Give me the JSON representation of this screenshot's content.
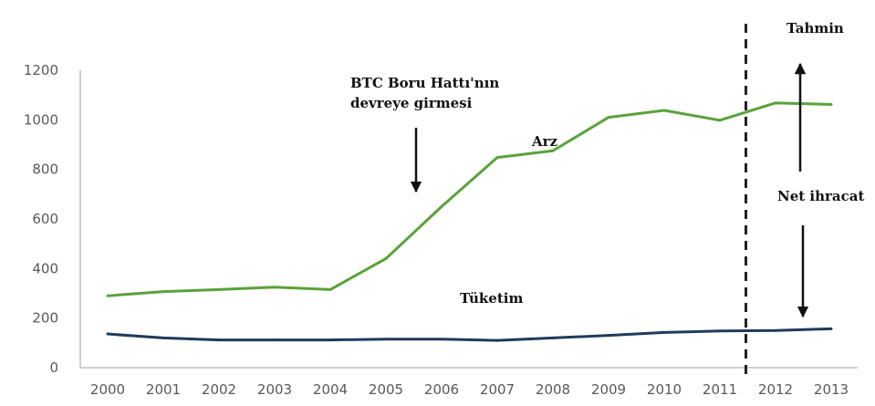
{
  "chart_data": {
    "type": "line",
    "x": [
      "2000",
      "2001",
      "2002",
      "2003",
      "2004",
      "2005",
      "2006",
      "2007",
      "2008",
      "2009",
      "2010",
      "2011",
      "2012",
      "2013"
    ],
    "ylim": [
      0,
      1200
    ],
    "yticks": [
      0,
      200,
      400,
      600,
      800,
      1000,
      1200
    ],
    "grid": false,
    "series": [
      {
        "name": "Arz",
        "color": "#5aa23a",
        "values": [
          290,
          307,
          315,
          325,
          315,
          440,
          650,
          848,
          875,
          1010,
          1038,
          998,
          1068,
          1062
        ]
      },
      {
        "name": "Tüketim",
        "color": "#1f3c5a",
        "values": [
          136,
          120,
          112,
          112,
          112,
          115,
          115,
          110,
          120,
          130,
          142,
          148,
          150,
          157
        ]
      }
    ],
    "annotations": {
      "btc_line1": "BTC Boru Hattı'nın",
      "btc_line2": "devreye girmesi",
      "forecast": "Tahmin",
      "net_exports": "Net ihracat"
    },
    "forecast_divider_after": "2011"
  }
}
